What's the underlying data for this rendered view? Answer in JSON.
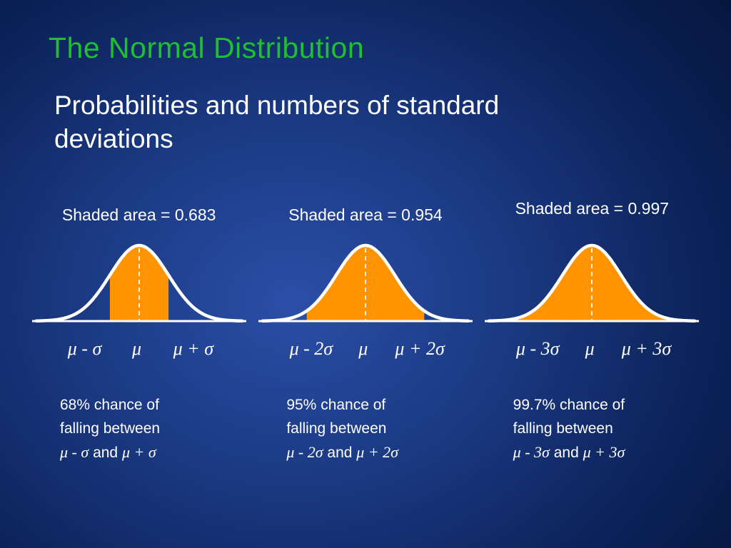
{
  "slide": {
    "title": "The Normal Distribution",
    "subtitle": "Probabilities and numbers of standard deviations",
    "title_color": "#1FBE33",
    "text_color": "#FFFFFF",
    "background": {
      "center_color": "#2B4FA8",
      "mid_color_1": "#1A3880",
      "mid_color_2": "#0B2157",
      "edge_color": "#03102F"
    }
  },
  "chart_data": [
    {
      "type": "area",
      "title": "Shaded area = 0.683",
      "distribution": "normal curve",
      "x_range_sigma": [
        -3.5,
        3.5
      ],
      "shaded_interval_sigma": [
        -1,
        1
      ],
      "shaded_area": 0.683,
      "ticks": {
        "left": "μ - σ",
        "center": "μ",
        "right": "μ + σ"
      },
      "caption": {
        "line1": "68% chance of",
        "line2": "falling between",
        "sym_left": "μ - σ",
        "conj": "and",
        "sym_right": "μ + σ"
      },
      "fill_color": "#FF9300",
      "curve_color": "#FFFFFF",
      "mean_line_color": "#FFFFFF"
    },
    {
      "type": "area",
      "title": "Shaded area = 0.954",
      "distribution": "normal curve",
      "x_range_sigma": [
        -3.5,
        3.5
      ],
      "shaded_interval_sigma": [
        -2,
        2
      ],
      "shaded_area": 0.954,
      "ticks": {
        "left": "μ - 2σ",
        "center": "μ",
        "right": "μ + 2σ"
      },
      "caption": {
        "line1": "95% chance of",
        "line2": "falling between",
        "sym_left": "μ - 2σ",
        "conj": "and",
        "sym_right": "μ + 2σ"
      },
      "fill_color": "#FF9300",
      "curve_color": "#FFFFFF",
      "mean_line_color": "#FFFFFF"
    },
    {
      "type": "area",
      "title": "Shaded area = 0.997",
      "distribution": "normal curve",
      "x_range_sigma": [
        -3.5,
        3.5
      ],
      "shaded_interval_sigma": [
        -3,
        3
      ],
      "shaded_area": 0.997,
      "ticks": {
        "left": "μ - 3σ",
        "center": "μ",
        "right": "μ + 3σ"
      },
      "caption": {
        "line1": "99.7% chance of",
        "line2": "falling between",
        "sym_left": "μ - 3σ",
        "conj": "and",
        "sym_right": "μ + 3σ"
      },
      "fill_color": "#FF9300",
      "curve_color": "#FFFFFF",
      "mean_line_color": "#FFFFFF"
    }
  ]
}
